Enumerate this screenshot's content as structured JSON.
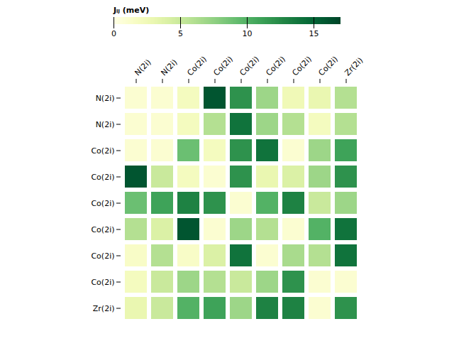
{
  "chart_data": {
    "type": "heatmap",
    "categories": [
      "N(2i)",
      "N(2i)",
      "Co(2i)",
      "Co(2i)",
      "Co(2i)",
      "Co(2i)",
      "Co(2i)",
      "Co(2i)",
      "Zr(2i)"
    ],
    "values": [
      [
        1.0,
        1.0,
        2.0,
        16.0,
        12.0,
        7.0,
        2.5,
        3.0,
        6.0
      ],
      [
        1.0,
        1.0,
        2.0,
        6.0,
        14.0,
        7.0,
        6.0,
        2.0,
        6.0
      ],
      [
        1.0,
        1.0,
        9.0,
        2.0,
        12.0,
        14.0,
        1.0,
        7.0,
        11.0
      ],
      [
        16.0,
        5.0,
        2.0,
        1.0,
        12.0,
        3.0,
        4.0,
        7.0,
        12.0
      ],
      [
        9.0,
        11.0,
        13.0,
        12.0,
        1.0,
        10.0,
        13.0,
        5.0,
        7.0
      ],
      [
        6.0,
        4.0,
        16.0,
        1.0,
        7.0,
        6.0,
        1.0,
        10.0,
        14.0
      ],
      [
        1.5,
        6.0,
        1.5,
        4.0,
        14.0,
        1.0,
        6.5,
        6.0,
        14.0
      ],
      [
        2.0,
        5.0,
        7.0,
        6.0,
        5.0,
        7.0,
        12.0,
        1.0,
        1.0
      ],
      [
        3.0,
        5.0,
        10.0,
        11.0,
        7.0,
        13.0,
        13.0,
        1.0,
        12.0
      ]
    ],
    "color": "YlGn",
    "colorbar_label": "Jᵢⱼ (meV)",
    "colorbar_range": [
      0,
      17
    ],
    "colorbar_ticks": [
      0,
      5,
      10,
      15
    ]
  }
}
